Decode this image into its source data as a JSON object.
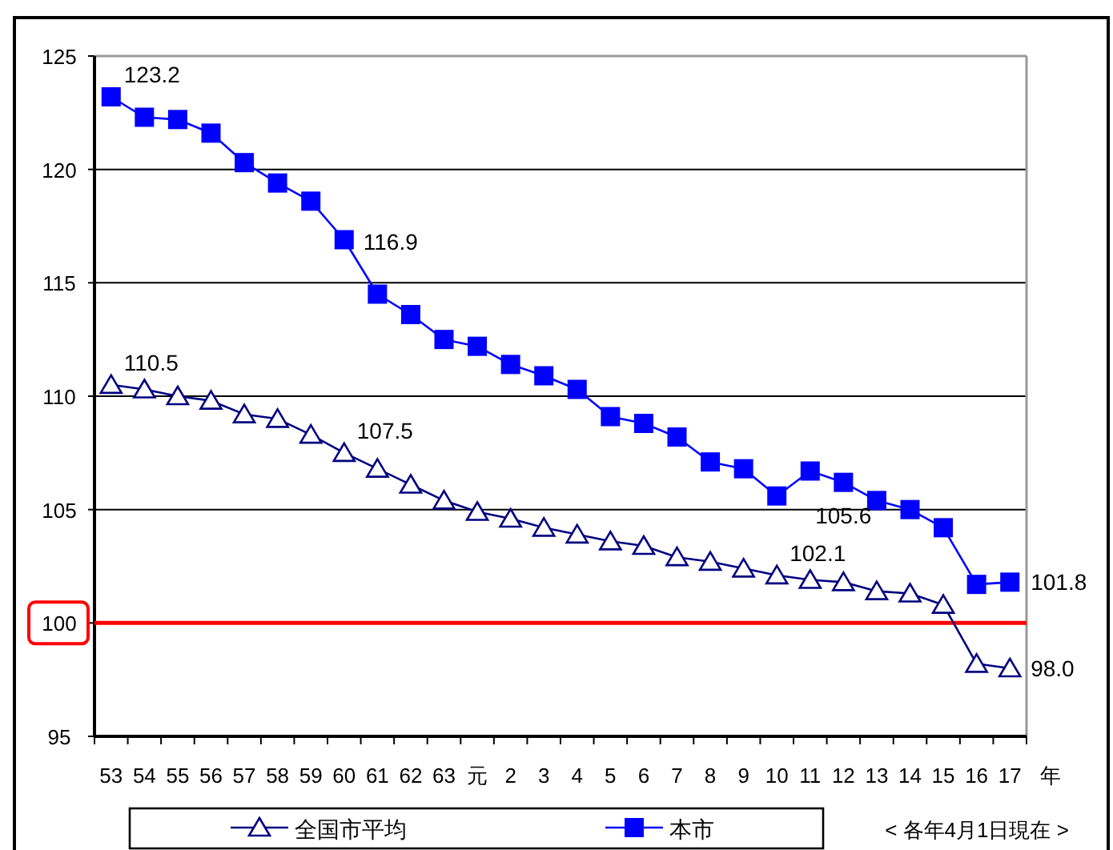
{
  "chart_data": {
    "type": "line",
    "xlabel": "年",
    "categories": [
      "53",
      "54",
      "55",
      "56",
      "57",
      "58",
      "59",
      "60",
      "61",
      "62",
      "63",
      "元",
      "2",
      "3",
      "4",
      "5",
      "6",
      "7",
      "8",
      "9",
      "10",
      "11",
      "12",
      "13",
      "14",
      "15",
      "16",
      "17"
    ],
    "ylim": [
      95,
      125
    ],
    "yticks": [
      95,
      100,
      105,
      110,
      115,
      120,
      125
    ],
    "grid": "y",
    "legend": "bottom",
    "series": [
      {
        "name": "全国市平均",
        "color": "#000080",
        "marker": "triangle",
        "values": [
          110.5,
          110.3,
          110.0,
          109.8,
          109.2,
          109.0,
          108.3,
          107.5,
          106.8,
          106.1,
          105.4,
          104.9,
          104.6,
          104.2,
          103.9,
          103.6,
          103.4,
          102.9,
          102.7,
          102.4,
          102.1,
          101.9,
          101.8,
          101.4,
          101.3,
          100.8,
          98.2,
          98.0
        ],
        "value_labels": [
          "110.5",
          null,
          null,
          null,
          null,
          null,
          null,
          "107.5",
          null,
          null,
          null,
          null,
          null,
          null,
          null,
          null,
          null,
          null,
          null,
          null,
          "102.1",
          null,
          null,
          null,
          null,
          null,
          null,
          "98.0"
        ]
      },
      {
        "name": "本市",
        "color": "#0000ff",
        "marker": "square",
        "values": [
          123.2,
          122.3,
          122.2,
          121.6,
          120.3,
          119.4,
          118.6,
          116.9,
          114.5,
          113.6,
          112.5,
          112.2,
          111.4,
          110.9,
          110.3,
          109.1,
          108.8,
          108.2,
          107.1,
          106.8,
          105.6,
          106.7,
          106.2,
          105.4,
          105.0,
          104.2,
          101.7,
          101.8
        ],
        "value_labels": [
          "123.2",
          null,
          null,
          null,
          null,
          null,
          null,
          "116.9",
          null,
          null,
          null,
          null,
          null,
          null,
          null,
          null,
          null,
          null,
          null,
          null,
          "105.6",
          null,
          null,
          null,
          null,
          null,
          null,
          "101.8"
        ]
      }
    ],
    "ref_lines": [
      {
        "axis": "y",
        "value": 100,
        "color": "#ff0000"
      }
    ],
    "annotations": [
      "< 各年4月1日現在 >"
    ]
  }
}
